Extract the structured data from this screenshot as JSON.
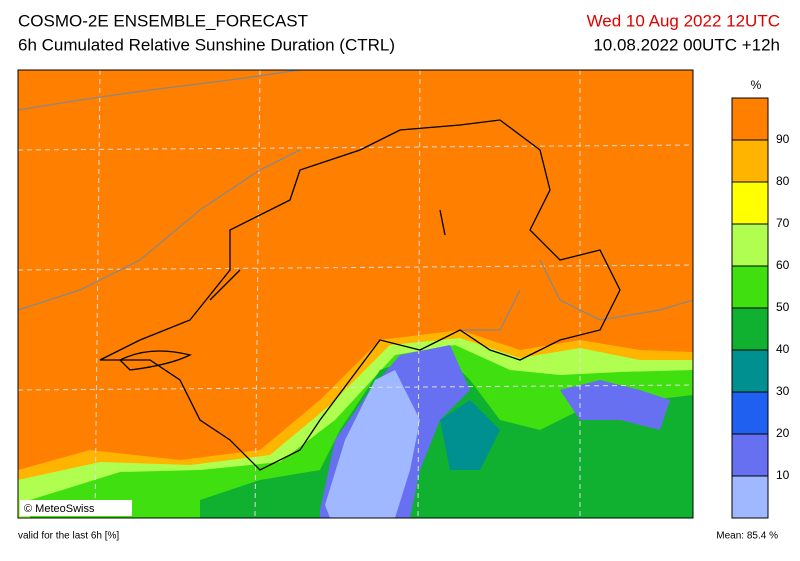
{
  "header": {
    "title": "COSMO-2E ENSEMBLE_FORECAST",
    "subtitle": "6h Cumulated Relative Sunshine Duration (CTRL)",
    "valid_time": "Wed 10 Aug 2022 12UTC",
    "run": "10.08.2022 00UTC +12h"
  },
  "legend": {
    "unit": "%",
    "ticks": [
      10,
      20,
      30,
      40,
      50,
      60,
      70,
      80,
      90
    ],
    "colors": [
      "#a0b8ff",
      "#6670f0",
      "#2060f0",
      "#009090",
      "#10b030",
      "#40e010",
      "#b0ff50",
      "#ffff00",
      "#ffb400",
      "#ff7f00"
    ]
  },
  "credit": "© MeteoSwiss",
  "footer": {
    "note": "valid for the last 6h [%]",
    "mean": "Mean:  85.4 %"
  }
}
